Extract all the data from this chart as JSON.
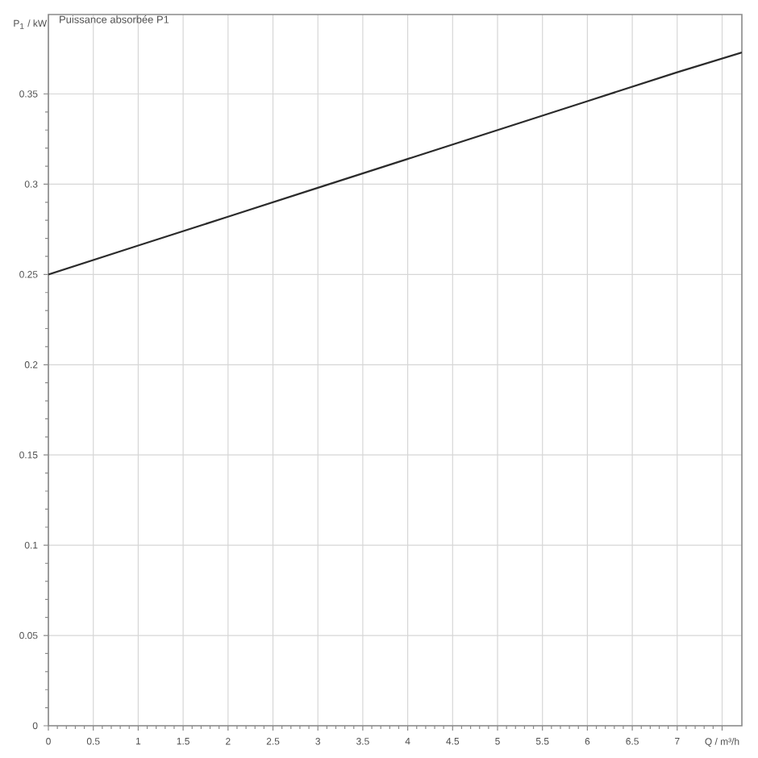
{
  "chart_data": {
    "type": "line",
    "title": "Puissance absorbée P1",
    "xlabel": "Q / m³/h",
    "ylabel": "P$_{1}$ / kW",
    "x": [
      0,
      1,
      2,
      3,
      4,
      5,
      6,
      7,
      7.72
    ],
    "values": [
      0.25,
      0.266,
      0.282,
      0.298,
      0.314,
      0.33,
      0.346,
      0.362,
      0.373
    ],
    "color": "#2b2b2b",
    "xlim": [
      0,
      7.72
    ],
    "ylim": [
      0,
      0.394
    ],
    "xticks": [
      0,
      0.5,
      1,
      1.5,
      2,
      2.5,
      3,
      3.5,
      4,
      4.5,
      5,
      5.5,
      6,
      6.5,
      7,
      {
        "value": 7.5,
        "label": null
      }
    ],
    "yticks": [
      0,
      0.05,
      0.1,
      0.15,
      0.2,
      0.25,
      0.3,
      0.35
    ],
    "grid": true
  }
}
